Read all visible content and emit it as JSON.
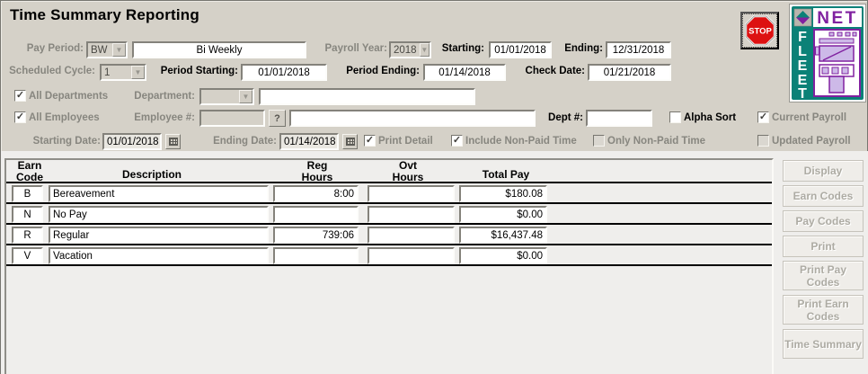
{
  "window": {
    "title": "Time Summary Reporting"
  },
  "header": {
    "stop_button_label": "STOP",
    "logo": {
      "vertical_word": "FLEET",
      "top_word": "NET"
    }
  },
  "filters": {
    "pay_period": {
      "label": "Pay Period:",
      "code": "BW",
      "name": "Bi Weekly",
      "enabled": false
    },
    "payroll_year": {
      "label": "Payroll Year:",
      "value": "2018",
      "enabled": false
    },
    "starting": {
      "label": "Starting:",
      "value": "01/01/2018",
      "enabled": true
    },
    "ending": {
      "label": "Ending:",
      "value": "12/31/2018",
      "enabled": true
    },
    "scheduled_cycle": {
      "label": "Scheduled Cycle:",
      "value": "1",
      "enabled": false
    },
    "period_starting": {
      "label": "Period Starting:",
      "value": "01/01/2018",
      "enabled": true
    },
    "period_ending": {
      "label": "Period Ending:",
      "value": "01/14/2018",
      "enabled": true
    },
    "check_date": {
      "label": "Check Date:",
      "value": "01/21/2018",
      "enabled": true
    },
    "all_departments": {
      "label": "All Departments",
      "checked": true
    },
    "department": {
      "label": "Department:",
      "selected": "",
      "value": ""
    },
    "all_employees": {
      "label": "All Employees",
      "checked": true
    },
    "employee_number": {
      "label": "Employee #:",
      "value": "",
      "help_button": "?",
      "name_value": ""
    },
    "dept_number": {
      "label": "Dept #:",
      "value": ""
    },
    "alpha_sort": {
      "label": "Alpha Sort",
      "checked": false
    },
    "current_payroll": {
      "label": "Current Payroll",
      "checked": true
    },
    "starting_date": {
      "label": "Starting Date:",
      "value": "01/01/2018"
    },
    "ending_date": {
      "label": "Ending Date:",
      "value": "01/14/2018"
    },
    "print_detail": {
      "label": "Print Detail",
      "checked": true
    },
    "include_non_paid": {
      "label": "Include Non-Paid Time",
      "checked": true
    },
    "only_non_paid": {
      "label": "Only Non-Paid Time",
      "checked": false
    },
    "updated_payroll": {
      "label": "Updated Payroll",
      "checked": false
    }
  },
  "table": {
    "columns": [
      {
        "line1": "Earn",
        "line2": "Code"
      },
      {
        "line1": "",
        "line2": "Description"
      },
      {
        "line1": "Reg",
        "line2": "Hours"
      },
      {
        "line1": "Ovt",
        "line2": "Hours"
      },
      {
        "line1": "",
        "line2": "Total Pay"
      }
    ],
    "rows": [
      {
        "code": "B",
        "description": "Bereavement",
        "reg_hours": "8:00",
        "ovt_hours": "",
        "total_pay": "$180.08"
      },
      {
        "code": "N",
        "description": "No Pay",
        "reg_hours": "",
        "ovt_hours": "",
        "total_pay": "$0.00"
      },
      {
        "code": "R",
        "description": "Regular",
        "reg_hours": "739:06",
        "ovt_hours": "",
        "total_pay": "$16,437.48"
      },
      {
        "code": "V",
        "description": "Vacation",
        "reg_hours": "",
        "ovt_hours": "",
        "total_pay": "$0.00"
      }
    ]
  },
  "buttons": [
    {
      "name": "display-button",
      "label": "Display"
    },
    {
      "name": "earn-codes-button",
      "label": "Earn Codes"
    },
    {
      "name": "pay-codes-button",
      "label": "Pay Codes"
    },
    {
      "name": "print-button",
      "label": "Print"
    },
    {
      "name": "print-pay-codes-button",
      "label": "Print Pay Codes"
    },
    {
      "name": "print-earn-codes-button",
      "label": "Print Earn Codes"
    },
    {
      "name": "time-summary-button",
      "label": "Time Summary"
    }
  ],
  "colors": {
    "form_bg": "#d5d1c8",
    "panel_bg": "#efeeec",
    "stop_red": "#dd1111",
    "logo_teal": "#0b8177",
    "logo_purple": "#8021a0",
    "logo_lav": "#cdb9e8",
    "label_gray": "#87867f",
    "btn_text": "#adaba3",
    "table_line": "#000000"
  }
}
